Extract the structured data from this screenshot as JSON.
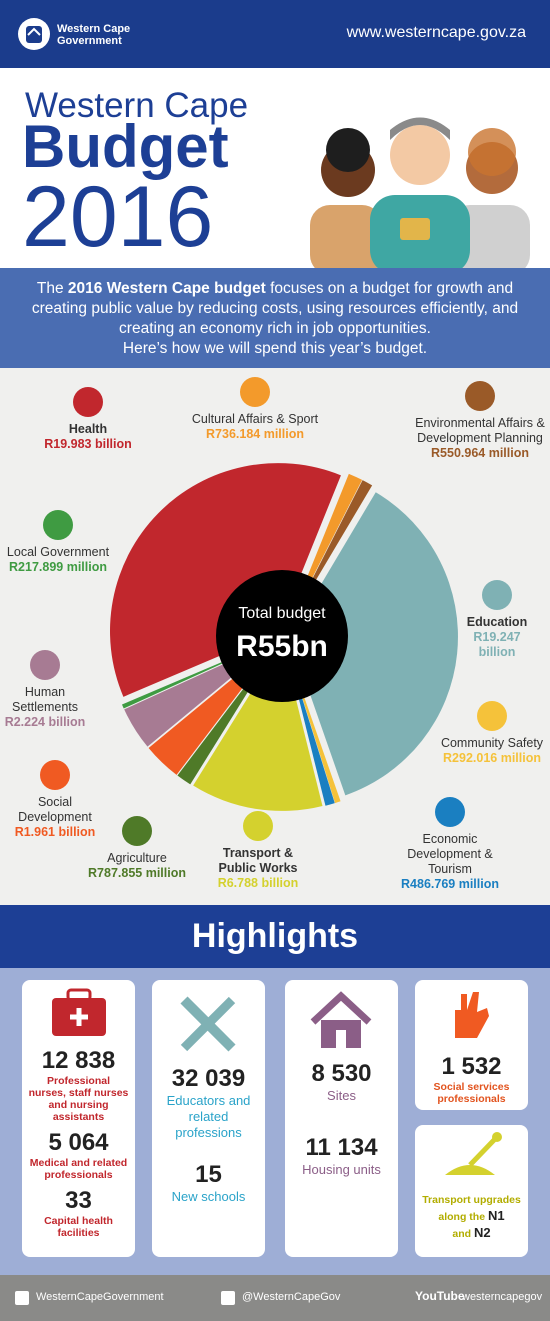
{
  "header": {
    "logo_lines": [
      "Western Cape",
      "Government"
    ],
    "url": "www.westerncape.gov.za"
  },
  "title": {
    "line1": "Western Cape",
    "line2": "Budget",
    "line3": "2016"
  },
  "intro": {
    "pre": "The ",
    "bold": "2016 Western Cape budget",
    "post": " focuses on a budget for growth and creating public value by reducing costs, using resources efficiently, and creating an economy rich in job opportunities.",
    "last": "Here’s how we will spend this year’s budget."
  },
  "chart_data": {
    "type": "pie",
    "center_label": "Total budget",
    "center_value": "R55bn",
    "categories": [
      "Cultural Affairs & Sport",
      "Environmental Affairs & Development Planning",
      "Education",
      "Community Safety",
      "Economic Development & Tourism",
      "Transport & Public Works",
      "Agriculture",
      "Social Development",
      "Human Settlements",
      "Local Government",
      "Health"
    ],
    "values": [
      736.184,
      550.964,
      19247,
      292.016,
      486.769,
      6788,
      787.855,
      1961,
      2224,
      217.899,
      19983
    ],
    "value_labels": [
      "R736.184 million",
      "R550.964 million",
      "R19.247 billion",
      "R292.016 million",
      "R486.769 million",
      "R6.788 billion",
      "R787.855 million",
      "R1.961 billion",
      "R2.224 billion",
      "R217.899 million",
      "R19.983 billion"
    ],
    "colors": [
      "#f39a2b",
      "#9a5a28",
      "#7fb1b4",
      "#f5c23a",
      "#1a7fc1",
      "#d4d12e",
      "#4f7a28",
      "#f05a22",
      "#a77b93",
      "#3f9b42",
      "#c1272d"
    ]
  },
  "highlights": {
    "title": "Highlights",
    "health": [
      {
        "number": "12 838",
        "text": "Professional nurses, staff nurses and nursing assistants"
      },
      {
        "number": "5 064",
        "text": "Medical and related professionals"
      },
      {
        "number": "33",
        "text": "Capital health facilities"
      }
    ],
    "education": [
      {
        "number": "32 039",
        "text": "Educators and related professions"
      },
      {
        "number": "15",
        "text": "New schools"
      }
    ],
    "housing": [
      {
        "number": "8 530",
        "text": "Sites"
      },
      {
        "number": "11 134",
        "text": "Housing units"
      }
    ],
    "social": [
      {
        "number": "1 532",
        "text": "Social services professionals"
      }
    ],
    "transport": {
      "text": "Transport upgrades along the",
      "n1": "N1",
      "and": "and",
      "n2": "N2"
    }
  },
  "footer": {
    "facebook": "WesternCapeGovernment",
    "twitter": "@WesternCapeGov",
    "youtube_logo": "YouTube",
    "youtube": "westerncapegov"
  }
}
